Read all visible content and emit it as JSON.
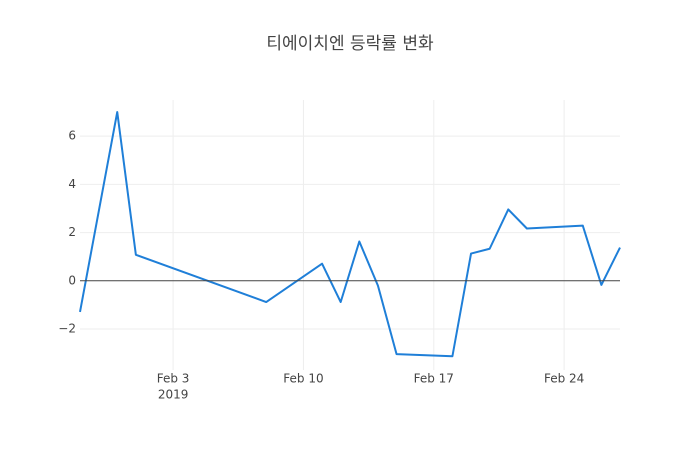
{
  "chart_data": {
    "type": "line",
    "title": "티에이치엔 등락률 변화",
    "x": [
      "2019-01-29",
      "2019-01-31",
      "2019-02-01",
      "2019-02-08",
      "2019-02-11",
      "2019-02-12",
      "2019-02-13",
      "2019-02-14",
      "2019-02-15",
      "2019-02-18",
      "2019-02-19",
      "2019-02-20",
      "2019-02-21",
      "2019-02-22",
      "2019-02-25",
      "2019-02-26",
      "2019-02-27"
    ],
    "series": [
      {
        "color": "#1f7fd8",
        "values": [
          -1.29,
          7.0,
          1.08,
          -0.88,
          0.71,
          -0.88,
          1.63,
          -0.2,
          -3.04,
          -3.13,
          1.13,
          1.33,
          2.96,
          2.17,
          2.29,
          -0.17,
          1.38
        ]
      }
    ],
    "xlim": [
      "2019-01-29",
      "2019-02-27"
    ],
    "xticks": [
      {
        "value": "2019-02-03",
        "label": "Feb 3"
      },
      {
        "value": "2019-02-10",
        "label": "Feb 10"
      },
      {
        "value": "2019-02-17",
        "label": "Feb 17"
      },
      {
        "value": "2019-02-24",
        "label": "Feb 24"
      }
    ],
    "xtick_year": "2019",
    "ylim": [
      -3.7,
      7.5
    ],
    "yticks": [
      {
        "value": -2,
        "label": "−2"
      },
      0,
      2,
      4,
      6
    ],
    "grid": true
  }
}
